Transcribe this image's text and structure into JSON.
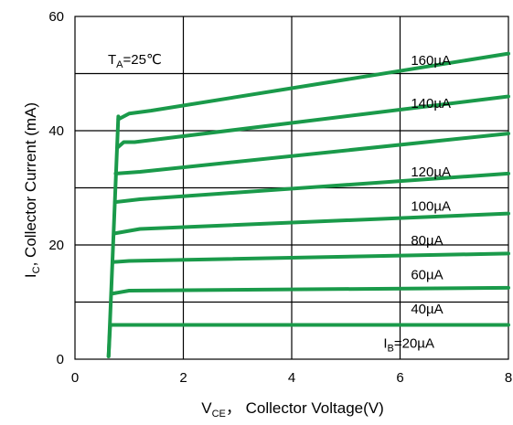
{
  "chart_data": {
    "type": "line",
    "xlabel": {
      "main": "V",
      "sub": "CE",
      "rest": "， Collector Voltage(V)"
    },
    "ylabel": {
      "main": "I",
      "sub": "C",
      "rest": ", Collector Current (mA)"
    },
    "xlim": [
      0,
      8
    ],
    "ylim": [
      0,
      60
    ],
    "xticks": [
      0,
      2,
      4,
      6,
      8
    ],
    "yticks": [
      0,
      20,
      40,
      60
    ],
    "grid": true,
    "annotation": {
      "main": "T",
      "sub": "A",
      "rest": "=25℃"
    },
    "line_color": "#1a9a4a",
    "series": [
      {
        "label": "20µA",
        "label_prefix": "I",
        "label_sub": "B",
        "label_eq": "=",
        "points": [
          [
            0.62,
            0.5
          ],
          [
            0.65,
            6
          ],
          [
            1.0,
            6
          ],
          [
            8.0,
            6
          ]
        ],
        "label_x": 6.2,
        "label_y": 2.0
      },
      {
        "label": "40µA",
        "points": [
          [
            0.7,
            11.5
          ],
          [
            1.0,
            12
          ],
          [
            8.0,
            12.5
          ]
        ],
        "label_x": 6.2,
        "label_y": 8.0
      },
      {
        "label": "60µA",
        "points": [
          [
            0.7,
            17
          ],
          [
            1.0,
            17.2
          ],
          [
            8.0,
            18.5
          ]
        ],
        "label_x": 6.2,
        "label_y": 14.0
      },
      {
        "label": "80µA",
        "points": [
          [
            0.72,
            22
          ],
          [
            1.2,
            22.8
          ],
          [
            8.0,
            25.5
          ]
        ],
        "label_x": 6.2,
        "label_y": 20.0
      },
      {
        "label": "100µA",
        "points": [
          [
            0.74,
            27.5
          ],
          [
            1.2,
            28
          ],
          [
            8.0,
            32.5
          ]
        ],
        "label_x": 6.2,
        "label_y": 26.0
      },
      {
        "label": "120µA",
        "points": [
          [
            0.75,
            32.5
          ],
          [
            1.2,
            32.8
          ],
          [
            8.0,
            39.5
          ]
        ],
        "label_x": 6.2,
        "label_y": 32.0
      },
      {
        "label": "140µA",
        "points": [
          [
            0.78,
            37
          ],
          [
            0.9,
            38
          ],
          [
            1.1,
            38
          ],
          [
            8.0,
            46
          ]
        ],
        "label_x": 6.2,
        "label_y": 44.0
      },
      {
        "label": "160µA",
        "points": [
          [
            0.8,
            42
          ],
          [
            1.0,
            43
          ],
          [
            1.4,
            43.5
          ],
          [
            8.0,
            53.5
          ]
        ],
        "label_x": 6.2,
        "label_y": 51.5
      }
    ],
    "vertical_rise": [
      [
        0.62,
        0.5
      ],
      [
        0.8,
        42.5
      ]
    ]
  }
}
